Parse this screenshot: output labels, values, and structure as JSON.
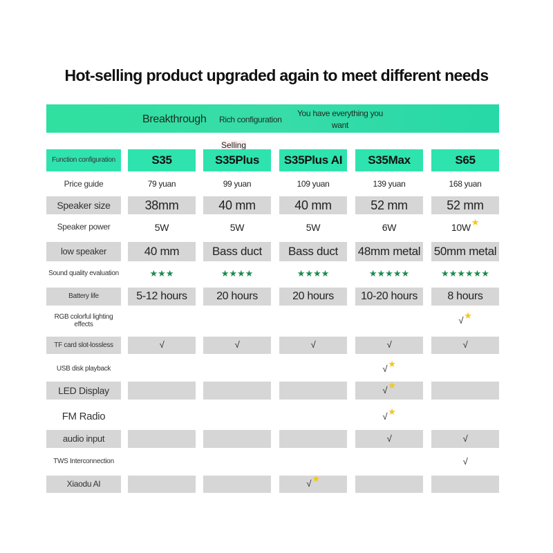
{
  "title": "Hot-selling product upgraded again to meet different needs",
  "band": {
    "breakthrough": "Breakthrough",
    "rich": "Rich configuration",
    "everything": "You have everything you want"
  },
  "selling_tag": "Selling",
  "colors": {
    "accent": "#2ee3ae",
    "row_gray": "#d6d6d6",
    "rating_star": "#1b8a4f",
    "highlight_star": "#f5c518"
  },
  "header": {
    "label": "Function configuration",
    "models": [
      "S35",
      "S35Plus",
      "S35Plus AI",
      "S35Max",
      "S65"
    ]
  },
  "rows": [
    {
      "label": "Price guide",
      "values": [
        "79 yuan",
        "99 yuan",
        "109 yuan",
        "139 yuan",
        "168 yuan"
      ]
    },
    {
      "label": "Speaker size",
      "values": [
        "38mm",
        "40 mm",
        "40 mm",
        "52 mm",
        "52 mm"
      ]
    },
    {
      "label": "Speaker power",
      "values": [
        "5W",
        "5W",
        "5W",
        "6W",
        "10W★"
      ]
    },
    {
      "label": "low speaker",
      "values": [
        "40 mm",
        "Bass duct",
        "Bass duct",
        "48mm metal",
        "50mm metal"
      ]
    },
    {
      "label": "Sound quality evaluation",
      "values": [
        "★★★",
        "★★★★",
        "★★★★",
        "★★★★★",
        "★★★★★★"
      ]
    },
    {
      "label": "Battery life",
      "values": [
        "5-12 hours",
        "20 hours",
        "20 hours",
        "10-20 hours",
        "8 hours"
      ]
    },
    {
      "label": "RGB colorful lighting effects",
      "values": [
        "",
        "",
        "",
        "",
        "√★"
      ]
    },
    {
      "label": "TF card slot-lossless",
      "values": [
        "√",
        "√",
        "√",
        "√",
        "√"
      ]
    },
    {
      "label": "USB disk playback",
      "values": [
        "",
        "",
        "",
        "√★",
        ""
      ]
    },
    {
      "label": "LED Display",
      "values": [
        "",
        "",
        "",
        "√★",
        ""
      ]
    },
    {
      "label": "FM Radio",
      "values": [
        "",
        "",
        "",
        "√★",
        ""
      ]
    },
    {
      "label": "audio input",
      "values": [
        "",
        "",
        "",
        "√",
        "√"
      ]
    },
    {
      "label": "TWS Interconnection",
      "values": [
        "",
        "",
        "",
        "",
        "√"
      ]
    },
    {
      "label": "Xiaodu AI",
      "values": [
        "",
        "",
        "√★",
        "",
        ""
      ]
    }
  ]
}
